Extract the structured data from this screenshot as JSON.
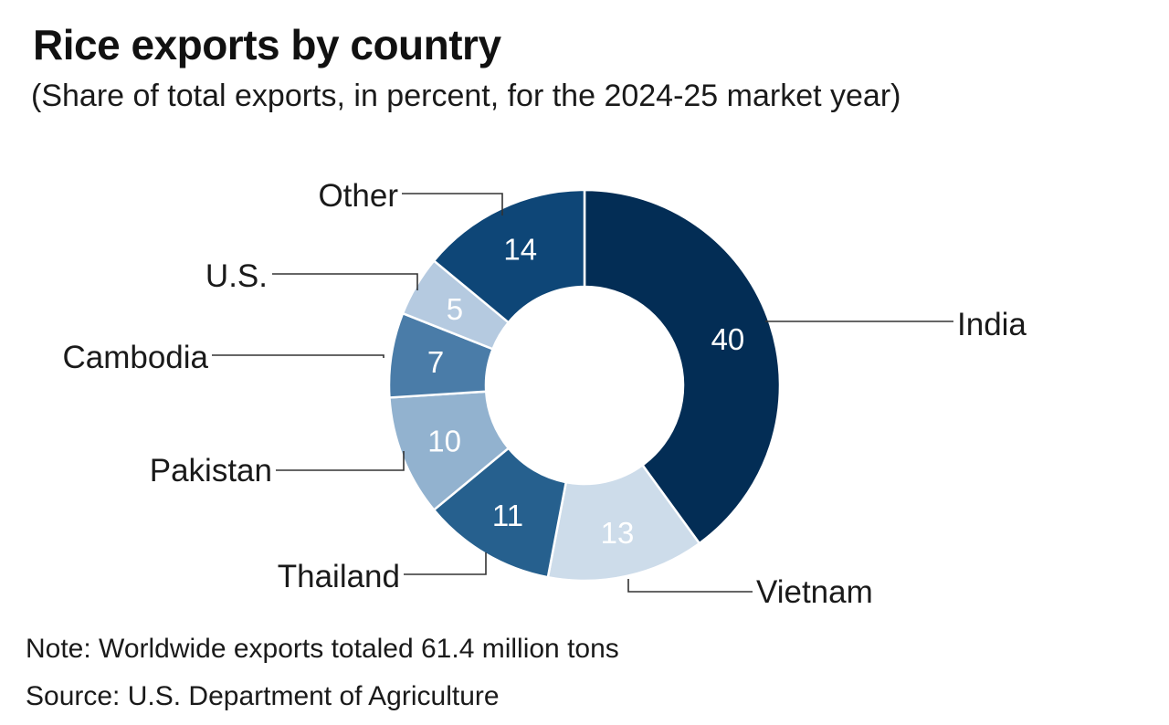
{
  "header": {
    "title": "Rice exports by country",
    "subtitle": "(Share of total exports, in percent, for the 2024-25 market year)"
  },
  "footer": {
    "note": "Note: Worldwide exports totaled 61.4 million tons",
    "source": "Source: U.S. Department of Agriculture"
  },
  "chart_data": {
    "type": "pie",
    "variant": "donut",
    "title": "Rice exports by country",
    "subtitle": "(Share of total exports, in percent, for the 2024-25 market year)",
    "unit": "percent",
    "start": "12 o'clock",
    "direction": "clockwise",
    "categories": [
      "India",
      "Vietnam",
      "Thailand",
      "Pakistan",
      "Cambodia",
      "U.S.",
      "Other"
    ],
    "values": [
      40,
      13,
      11,
      10,
      7,
      5,
      14
    ],
    "data_labels": [
      "40",
      "13",
      "11",
      "10",
      "7",
      "5",
      "14"
    ],
    "colors": [
      "#032d55",
      "#cddcea",
      "#26608e",
      "#92b2cf",
      "#4a7ca8",
      "#b5cae0",
      "#0e4677"
    ],
    "data_label_colors": [
      "#ffffff",
      "#ffffff",
      "#ffffff",
      "#ffffff",
      "#ffffff",
      "#ffffff",
      "#ffffff"
    ],
    "legend": "none (leader-line labels)"
  }
}
